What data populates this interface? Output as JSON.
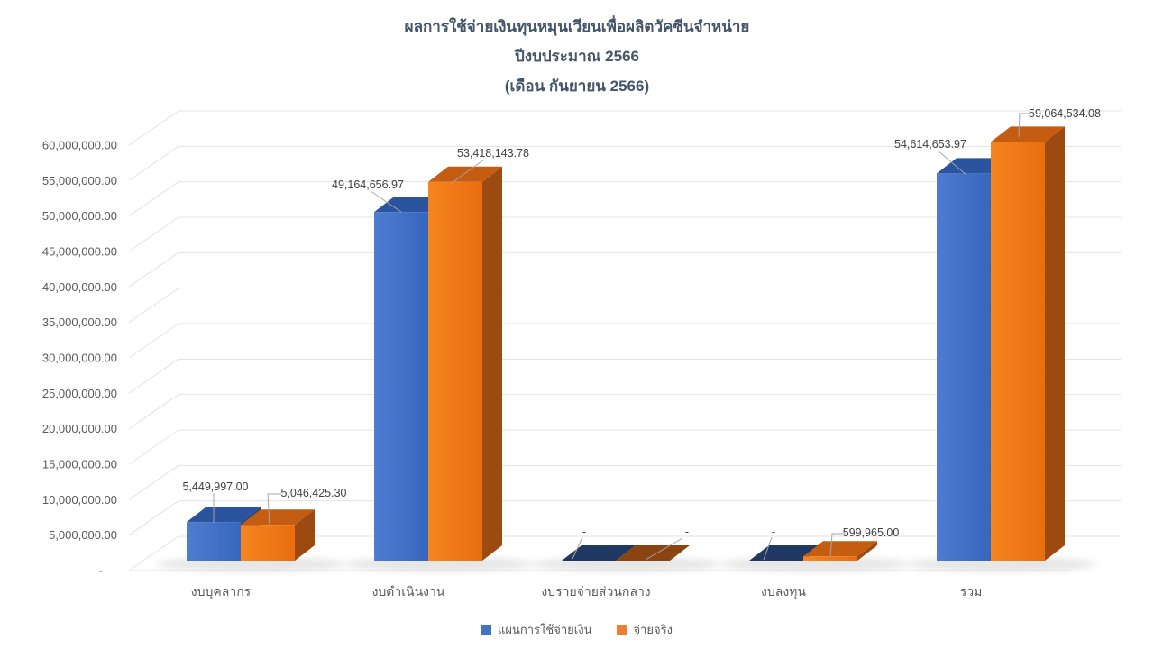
{
  "title": {
    "line1": "ผลการใช้จ่ายเงินทุนหมุนเวียนเพื่อผลิตวัคซีนจำหน่าย",
    "line2": "ปีงบประมาณ 2566",
    "line3": "(เดือน กันยายน 2566)"
  },
  "colors": {
    "series1_blue": "#4472C4",
    "series2_orange": "#ED7D31",
    "title_text": "#44546A",
    "axis_text": "#595959",
    "data_label_text": "#404040",
    "gridline": "#E3E3E3",
    "leader_line": "#A6A6A6"
  },
  "chart_data": {
    "type": "bar",
    "style": "3d-clustered-column",
    "title": "ผลการใช้จ่ายเงินทุนหมุนเวียนเพื่อผลิตวัคซีนจำหน่าย ปีงบประมาณ 2566 (เดือน กันยายน 2566)",
    "categories": [
      "งบบุคลากร",
      "งบดำเนินงาน",
      "งบรายจ่ายส่วนกลาง",
      "งบลงทุน",
      "รวม"
    ],
    "series": [
      {
        "name": "แผนการใช้จ่ายเงิน",
        "color": "#4472C4",
        "values": [
          5449997.0,
          49164656.97,
          0,
          0,
          54614653.97
        ],
        "labels": [
          "5,449,997.00",
          "49,164,656.97",
          "-",
          "-",
          "54,614,653.97"
        ]
      },
      {
        "name": "จ่ายจริง",
        "color": "#ED7D31",
        "values": [
          5046425.3,
          53418143.78,
          0,
          599965.0,
          59064534.08
        ],
        "labels": [
          "5,046,425.30",
          "53,418,143.78",
          "-",
          "599,965.00",
          "59,064,534.08"
        ]
      }
    ],
    "ylim": [
      0,
      60000000
    ],
    "y_tick_step": 5000000,
    "y_tick_labels": [
      "-",
      "5,000,000.00",
      "10,000,000.00",
      "15,000,000.00",
      "20,000,000.00",
      "25,000,000.00",
      "30,000,000.00",
      "35,000,000.00",
      "40,000,000.00",
      "45,000,000.00",
      "50,000,000.00",
      "55,000,000.00",
      "60,000,000.00"
    ],
    "xlabel": "",
    "ylabel": "",
    "grid": true,
    "legend_position": "bottom"
  }
}
